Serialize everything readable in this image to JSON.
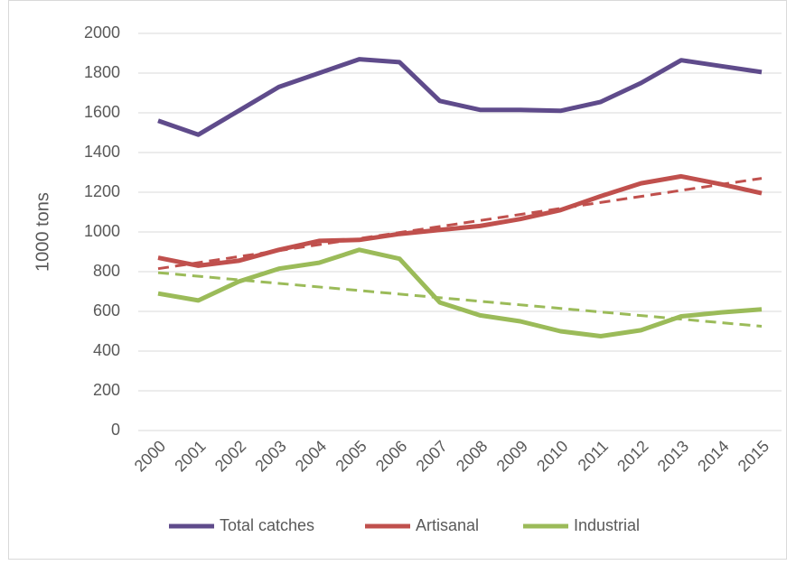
{
  "chart_data": {
    "type": "line",
    "y_label": "1000 tons",
    "categories": [
      "2000",
      "2001",
      "2002",
      "2003",
      "2004",
      "2005",
      "2006",
      "2007",
      "2008",
      "2009",
      "2010",
      "2011",
      "2012",
      "2013",
      "2014",
      "2015"
    ],
    "series": [
      {
        "name": "Total catches",
        "color": "#5f4b8b",
        "values": [
          1560,
          1490,
          1610,
          1730,
          1800,
          1870,
          1855,
          1660,
          1615,
          1615,
          1610,
          1655,
          1750,
          1865,
          1835,
          1805
        ]
      },
      {
        "name": "Artisanal",
        "color": "#c0504d",
        "values": [
          870,
          830,
          855,
          910,
          955,
          960,
          990,
          1010,
          1030,
          1065,
          1110,
          1180,
          1245,
          1280,
          1240,
          1195
        ]
      },
      {
        "name": "Industrial",
        "color": "#9bbb59",
        "values": [
          690,
          655,
          750,
          815,
          845,
          910,
          865,
          645,
          580,
          550,
          500,
          475,
          505,
          575,
          595,
          610
        ]
      }
    ],
    "trendlines": [
      {
        "color": "#c0504d",
        "values": [
          815,
          1270
        ]
      },
      {
        "color": "#9bbb59",
        "values": [
          795,
          525
        ]
      }
    ],
    "ylim": [
      0,
      2000
    ],
    "yticks": [
      0,
      200,
      400,
      600,
      800,
      1000,
      1200,
      1400,
      1600,
      1800,
      2000
    ],
    "grid": true,
    "legend": "bottom"
  }
}
